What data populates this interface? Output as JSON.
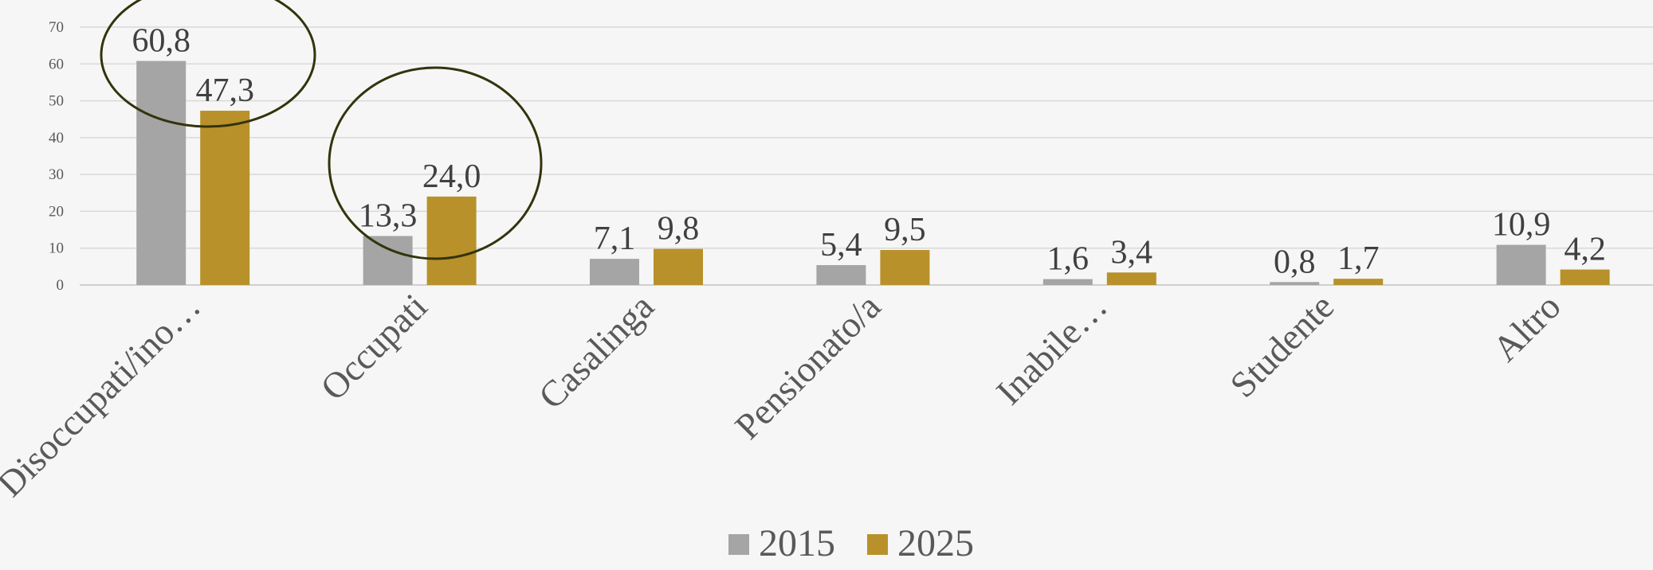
{
  "chart_data": {
    "type": "bar",
    "categories": [
      "Disoccupati/ino…",
      "Occupati",
      "Casalinga",
      "Pensionato/a",
      "Inabile…",
      "Studente",
      "Altro"
    ],
    "series": [
      {
        "name": "2015",
        "color": "#a5a5a5",
        "values": [
          60.8,
          13.3,
          7.1,
          5.4,
          1.6,
          0.8,
          10.9
        ],
        "value_labels": [
          "60,8",
          "13,3",
          "7,1",
          "5,4",
          "1,6",
          "0,8",
          "10,9"
        ]
      },
      {
        "name": "2025",
        "color": "#b8912a",
        "values": [
          47.3,
          24.0,
          9.8,
          9.5,
          3.4,
          1.7,
          4.2
        ],
        "value_labels": [
          "47,3",
          "24,0",
          "9,8",
          "9,5",
          "3,4",
          "1,7",
          "4,2"
        ]
      }
    ],
    "ylim": [
      0,
      70
    ],
    "yticks": [
      0,
      10,
      20,
      30,
      40,
      50,
      60,
      70
    ],
    "grid": true,
    "legend": "bottom"
  }
}
